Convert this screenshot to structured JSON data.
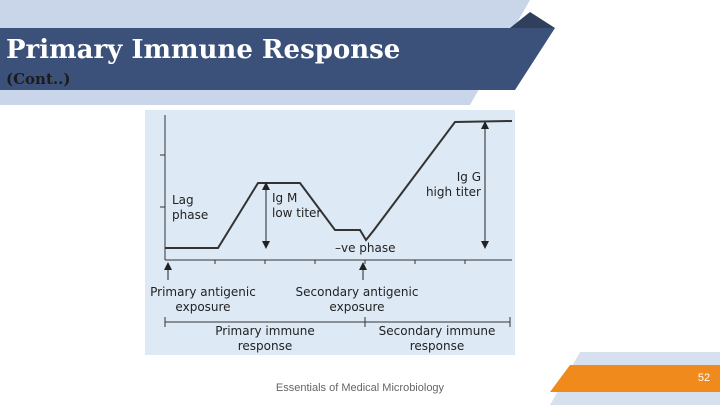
{
  "header": {
    "title": "Primary Immune Response",
    "subtitle": "(Cont..)"
  },
  "figure": {
    "lag_phase": [
      "Lag",
      "phase"
    ],
    "igm": [
      "Ig M",
      "low titer"
    ],
    "negative_phase": "–ve phase",
    "igg": [
      "Ig G",
      "high titer"
    ],
    "primary_exposure": [
      "Primary antigenic",
      "exposure"
    ],
    "secondary_exposure": [
      "Secondary antigenic",
      "exposure"
    ],
    "primary_response": [
      "Primary immune",
      "response"
    ],
    "secondary_response": [
      "Secondary immune",
      "response"
    ]
  },
  "footer": {
    "text": "Essentials of Medical Microbiology",
    "page_number": "52"
  }
}
